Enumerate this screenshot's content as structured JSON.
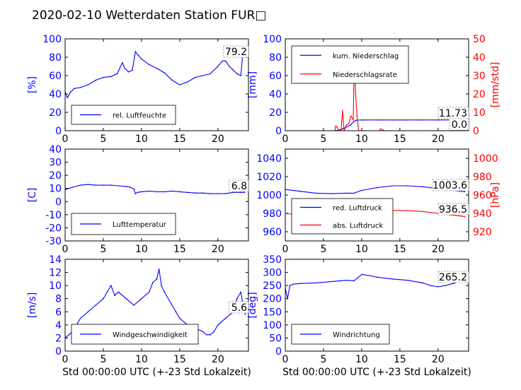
{
  "figure": {
    "title": "2020-02-10 Wetterdaten Station FUR□"
  },
  "chart_data": [
    {
      "id": "humidity",
      "type": "line",
      "ylabel": "[%]",
      "xlim": [
        0,
        24
      ],
      "ylim": [
        0,
        100
      ],
      "xticks": [
        0,
        5,
        10,
        15,
        20
      ],
      "yticks": [
        0,
        20,
        40,
        60,
        80,
        100
      ],
      "last_value_label": "79.2",
      "series": [
        {
          "name": "rel. Luftfeuchte",
          "color": "#0000ff",
          "x": [
            0,
            0.3,
            0.7,
            1.2,
            2,
            3,
            4,
            5,
            6,
            6.8,
            7.5,
            7.8,
            8.3,
            8.8,
            9.2,
            9.6,
            10,
            11,
            12,
            13,
            14,
            15,
            16,
            17,
            18,
            19,
            20,
            20.6,
            21,
            21.5,
            22,
            22.5,
            23,
            23.2
          ],
          "y": [
            42,
            36,
            42,
            46,
            47,
            50,
            55,
            58,
            59,
            62,
            74,
            68,
            64,
            66,
            86,
            82,
            78,
            72,
            68,
            63,
            55,
            50,
            53,
            58,
            60,
            62,
            70,
            76,
            76,
            70,
            66,
            62,
            60,
            79
          ]
        }
      ]
    },
    {
      "id": "precip",
      "type": "line",
      "ylabel": "[mm]",
      "y2label": "[mm/std]",
      "xlim": [
        0,
        24
      ],
      "ylim": [
        0,
        100
      ],
      "y2lim": [
        0,
        50
      ],
      "xticks": [
        0,
        5,
        10,
        15,
        20
      ],
      "yticks": [
        0,
        20,
        40,
        60,
        80,
        100
      ],
      "y2ticks": [
        0,
        10,
        20,
        30,
        40,
        50
      ],
      "value_labels": [
        "11.73",
        "0.0"
      ],
      "series": [
        {
          "name": "kum. Niederschlag",
          "color": "#0000ff",
          "axis": "left",
          "x": [
            0,
            6.5,
            7,
            7.5,
            8,
            8.5,
            9,
            9.3,
            10,
            12,
            14,
            16,
            18,
            20,
            22,
            24
          ],
          "y": [
            0,
            0,
            0.5,
            2,
            4,
            6,
            10,
            11.5,
            11.7,
            11.7,
            11.7,
            11.7,
            11.7,
            11.7,
            11.73,
            11.73
          ]
        },
        {
          "name": "Niederschlagsrate",
          "color": "#ff0000",
          "axis": "right",
          "x": [
            0,
            6.5,
            6.6,
            6.8,
            7,
            7.3,
            7.5,
            7.7,
            8,
            8.3,
            8.6,
            8.9,
            9,
            9.1,
            9.2,
            9.4,
            9.6,
            10,
            11,
            12.3,
            12.5,
            13,
            18,
            22,
            22.5,
            23,
            23.5
          ],
          "y": [
            0,
            0,
            2.5,
            2,
            0,
            0,
            11,
            0,
            3,
            4,
            8,
            6,
            30,
            34,
            20,
            8,
            0,
            0,
            0,
            0,
            1,
            0,
            0,
            0,
            0,
            0,
            0
          ]
        }
      ]
    },
    {
      "id": "temperature",
      "type": "line",
      "ylabel": "[C]",
      "xlim": [
        0,
        24
      ],
      "ylim": [
        -30,
        40
      ],
      "xticks": [
        0,
        5,
        10,
        15,
        20
      ],
      "yticks": [
        -30,
        -20,
        -10,
        0,
        10,
        20,
        30,
        40
      ],
      "last_value_label": "6.8",
      "series": [
        {
          "name": "Lufttemperatur",
          "color": "#0000ff",
          "x": [
            0,
            0.5,
            1,
            2,
            3,
            4,
            5,
            6,
            7,
            8,
            8.5,
            9,
            9.2,
            9.5,
            10,
            11,
            12,
            13,
            14,
            15,
            16,
            17,
            18,
            19,
            20,
            21,
            22,
            23,
            23.5
          ],
          "y": [
            9,
            10,
            11,
            12.5,
            13,
            12.5,
            12.5,
            12.5,
            12,
            11.5,
            11,
            9.5,
            6,
            7,
            7.5,
            8,
            7.5,
            7.5,
            8,
            7.5,
            7,
            6.5,
            6.5,
            6,
            6,
            6,
            7,
            7,
            7
          ]
        }
      ]
    },
    {
      "id": "pressure",
      "type": "line",
      "y2label": "[hPa]",
      "xlim": [
        0,
        24
      ],
      "ylim": [
        950,
        1050
      ],
      "y2lim": [
        910,
        1010
      ],
      "xticks": [
        0,
        5,
        10,
        15,
        20
      ],
      "yticks": [
        960,
        980,
        1000,
        1020,
        1040
      ],
      "y2ticks": [
        920,
        940,
        960,
        980,
        1000
      ],
      "value_labels": [
        "1003.6",
        "936.5"
      ],
      "series": [
        {
          "name": "red. Luftdruck",
          "color": "#0000ff",
          "axis": "left",
          "x": [
            0,
            2,
            4,
            6,
            8,
            9,
            10,
            12,
            14,
            16,
            18,
            20,
            22,
            23.5
          ],
          "y": [
            1006,
            1004,
            1002,
            1001.5,
            1002,
            1002,
            1005,
            1008,
            1010,
            1010,
            1009,
            1007,
            1005,
            1003.6
          ]
        },
        {
          "name": "abs. Luftdruck",
          "color": "#ff0000",
          "axis": "right",
          "x": [
            0,
            2,
            4,
            6,
            8,
            9,
            10,
            12,
            14,
            16,
            18,
            20,
            22,
            23.5
          ],
          "y": [
            940,
            938,
            936,
            935.5,
            936,
            936,
            938,
            941,
            943,
            943,
            942,
            940,
            938,
            936.5
          ]
        }
      ]
    },
    {
      "id": "wind_speed",
      "type": "line",
      "xlabel": "Std 00:00:00 UTC (+-23 Std Lokalzeit)",
      "ylabel": "[m/s]",
      "xlim": [
        0,
        24
      ],
      "ylim": [
        0,
        14
      ],
      "xticks": [
        0,
        5,
        10,
        15,
        20
      ],
      "yticks": [
        0,
        2,
        4,
        6,
        8,
        10,
        12,
        14
      ],
      "last_value_label": "5.6",
      "series": [
        {
          "name": "Windgeschwindigkeit",
          "color": "#0000ff",
          "x": [
            0,
            0.5,
            1,
            1.5,
            2,
            3,
            4,
            5,
            5.5,
            6,
            6.5,
            7,
            8,
            9,
            10,
            11,
            11.5,
            12,
            12.3,
            12.6,
            13,
            14,
            14.5,
            15,
            16,
            17,
            18,
            18.5,
            19,
            19.5,
            20,
            21,
            22,
            22.5,
            23,
            23.3,
            23.6
          ],
          "y": [
            2,
            2.5,
            3,
            4,
            5,
            6,
            7,
            8,
            9,
            10,
            8.5,
            9,
            8,
            7,
            8,
            9,
            10.5,
            11,
            12.5,
            10,
            9,
            7,
            6,
            5,
            4,
            3.5,
            3,
            2.5,
            2.5,
            3,
            4,
            5,
            6,
            8,
            9,
            7,
            5.6
          ]
        }
      ]
    },
    {
      "id": "wind_direction",
      "type": "line",
      "xlabel": "Std 00:00:00 UTC (+-23 Std Lokalzeit)",
      "ylabel": "[deg]",
      "xlim": [
        0,
        24
      ],
      "ylim": [
        0,
        350
      ],
      "xticks": [
        0,
        5,
        10,
        15,
        20
      ],
      "yticks": [
        0,
        50,
        100,
        150,
        200,
        250,
        300,
        350
      ],
      "last_value_label": "265.2",
      "series": [
        {
          "name": "Windrichtung",
          "color": "#0000ff",
          "x": [
            0,
            0.3,
            0.6,
            1,
            2,
            4,
            6,
            8,
            9,
            9.5,
            10,
            11,
            12,
            14,
            16,
            18,
            19,
            20,
            21,
            22,
            23,
            23.5
          ],
          "y": [
            240,
            200,
            250,
            255,
            258,
            260,
            265,
            270,
            268,
            280,
            292,
            288,
            282,
            275,
            270,
            260,
            250,
            245,
            250,
            258,
            268,
            265.2
          ]
        }
      ]
    }
  ]
}
